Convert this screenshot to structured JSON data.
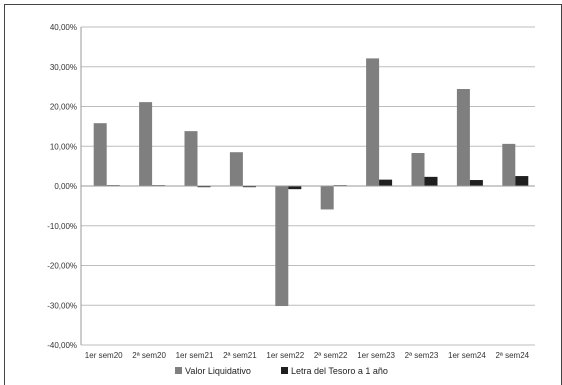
{
  "chart_data": {
    "type": "bar",
    "categories": [
      "1er sem20",
      "2ª sem20",
      "1er sem21",
      "2ª sem21",
      "1er sem22",
      "2ª sem22",
      "1er sem23",
      "2ª sem23",
      "1er sem24",
      "2ª sem24"
    ],
    "series": [
      {
        "name": "Valor Liquidativo",
        "color": "#7f7f7f",
        "values": [
          15.8,
          21.1,
          13.8,
          8.5,
          -30.2,
          -5.9,
          32.1,
          8.3,
          24.4,
          10.6
        ]
      },
      {
        "name": "Letra del Tesoro a 1 año",
        "color": "#1f1f1f",
        "values": [
          0.2,
          0.2,
          -0.3,
          -0.3,
          -0.8,
          0.2,
          1.6,
          2.3,
          1.5,
          2.5
        ]
      }
    ],
    "ylim": [
      -40,
      40
    ],
    "ytick_labels": [
      "40,00%",
      "30,00%",
      "20,00%",
      "10,00%",
      "0,00%",
      "-10,00%",
      "-20,00%",
      "-30,00%",
      "-40,00%"
    ],
    "grid": true,
    "legend_position": "bottom"
  }
}
